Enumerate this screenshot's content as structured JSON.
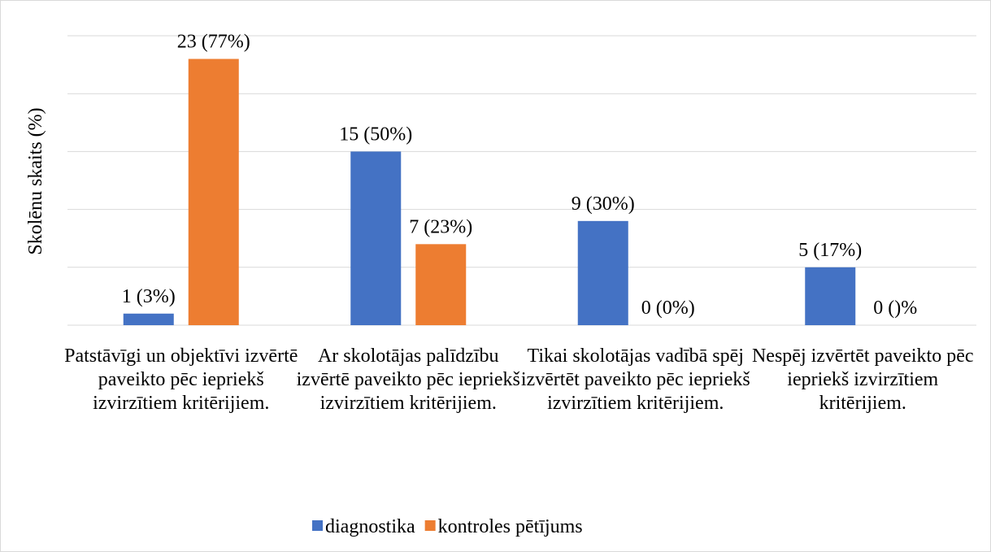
{
  "chart_data": {
    "type": "bar",
    "y_axis_label": "Skolēnu skaits (%)",
    "categories": [
      "Patstāvīgi un objektīvi izvērtē paveikto pēc iepriekš izvirzītiem kritērijiem.",
      "Ar skolotājas palīdzību izvērtē paveikto pēc iepriekš izvirzītiem kritērijiem.",
      "Tikai skolotājas vadībā spēj izvērtēt paveikto pēc iepriekš izvirzītiem kritērijiem.",
      "Nespēj izvērtēt paveikto pēc iepriekš izvirzītiem kritērijiem."
    ],
    "series": [
      {
        "name": "diagnostika",
        "color": "#4472c4",
        "values": [
          1,
          15,
          9,
          5
        ],
        "value_labels": [
          "1 (3%)",
          "15 (50%)",
          "9 (30%)",
          "5 (17%)"
        ]
      },
      {
        "name": "kontroles pētījums",
        "color": "#ed7d31",
        "values": [
          23,
          7,
          0,
          0
        ],
        "value_labels": [
          "23 (77%)",
          "7 (23%)",
          "0 (0%)",
          "0 ()%"
        ]
      }
    ],
    "ylim": [
      0,
      25
    ],
    "yticks": [
      0,
      5,
      10,
      15,
      20,
      25
    ],
    "grid": true,
    "legend": "bottom"
  }
}
